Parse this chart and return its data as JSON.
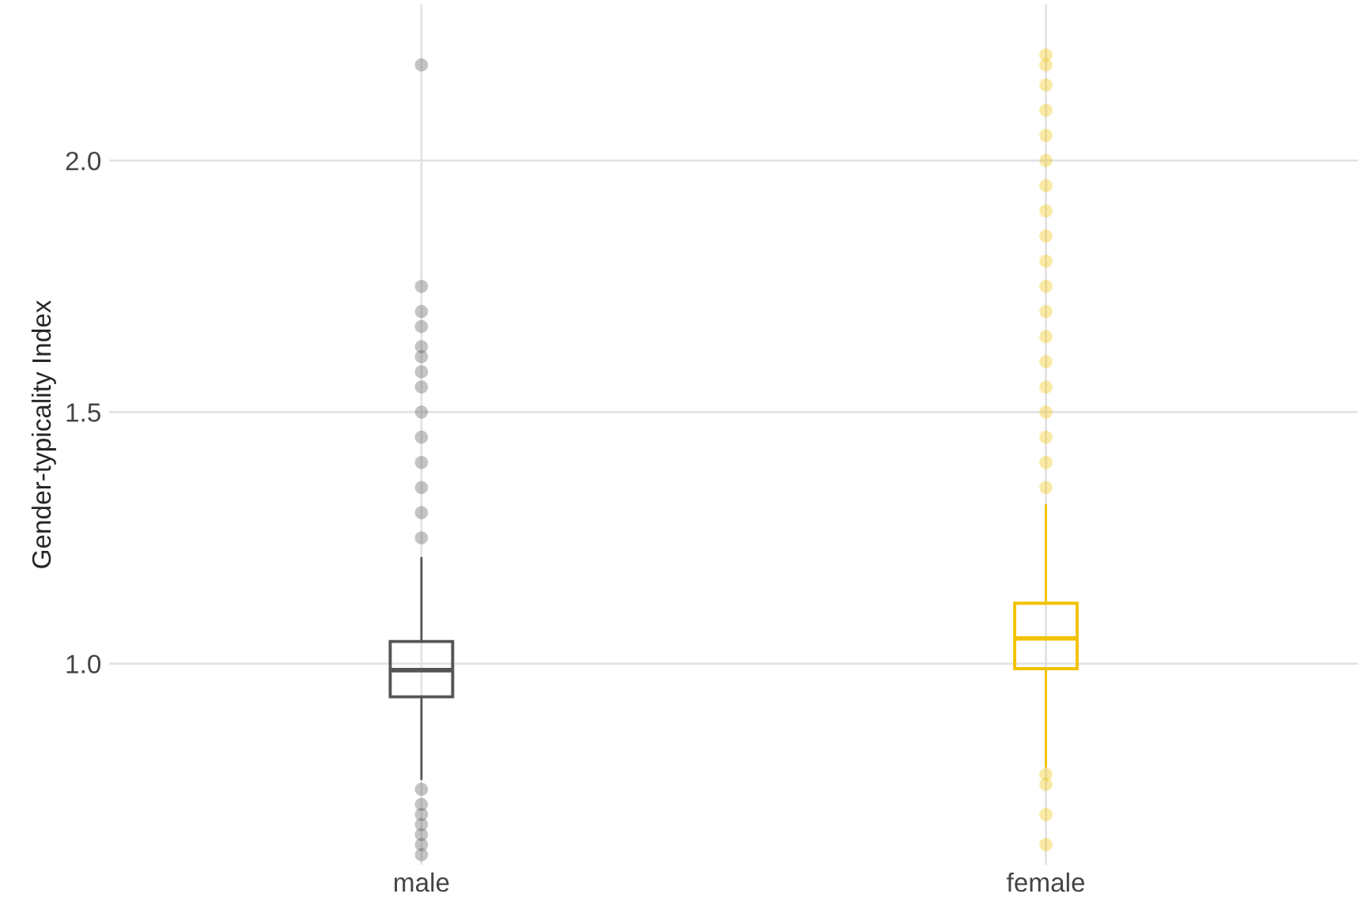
{
  "chart_data": {
    "type": "box",
    "ylabel": "Gender-typicality Index",
    "categories": [
      "male",
      "female"
    ],
    "series": [
      {
        "color": "#555555",
        "boxes": [
          {
            "low": 0.77,
            "q1": 0.934,
            "median": 0.987,
            "q3": 1.044,
            "high": 1.21,
            "outliers": [
              2.19,
              1.75,
              1.7,
              1.67,
              1.63,
              1.61,
              1.58,
              1.55,
              1.5,
              1.45,
              1.4,
              1.35,
              1.3,
              1.25,
              0.75,
              0.72,
              0.7,
              0.68,
              0.66,
              0.64,
              0.62
            ]
          },
          null
        ]
      },
      {
        "color": "#f2c200",
        "boxes": [
          null,
          {
            "low": 0.795,
            "q1": 0.99,
            "median": 1.05,
            "q3": 1.12,
            "high": 1.315,
            "outliers": [
              2.21,
              2.19,
              2.15,
              2.1,
              2.05,
              2.0,
              1.95,
              1.9,
              1.85,
              1.8,
              1.75,
              1.7,
              1.65,
              1.6,
              1.55,
              1.5,
              1.45,
              1.4,
              1.35,
              0.78,
              0.76,
              0.7,
              0.64
            ]
          }
        ]
      }
    ],
    "ylim": [
      0.6,
      2.31
    ],
    "yticks": [
      {
        "value": 1.0,
        "label": "1.0"
      },
      {
        "value": 1.5,
        "label": "1.5"
      },
      {
        "value": 2.0,
        "label": "2.0"
      }
    ],
    "grid": true
  }
}
